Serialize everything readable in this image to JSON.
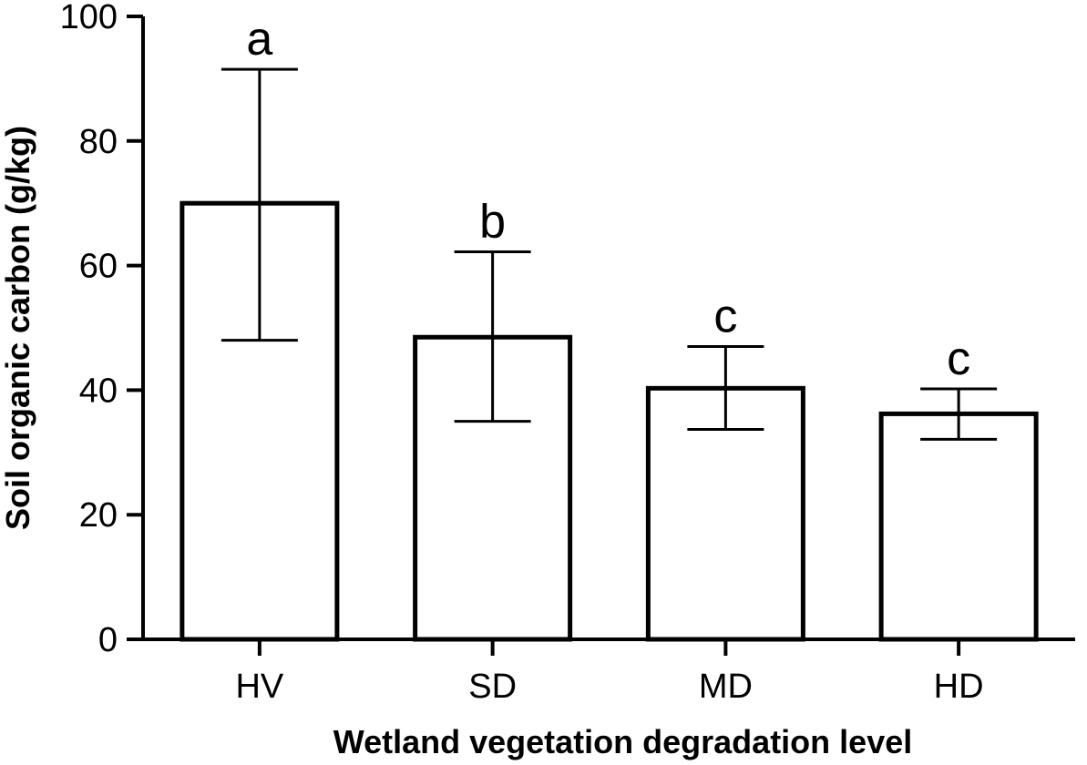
{
  "chart_data": {
    "type": "bar",
    "title": "",
    "xlabel": "Wetland vegetation degradation level",
    "ylabel": "Soil organic carbon (g/kg)",
    "categories": [
      "HV",
      "SD",
      "MD",
      "HD"
    ],
    "values": [
      70,
      48.5,
      40.3,
      36.2
    ],
    "error_upper": [
      91.5,
      62.2,
      47,
      40.2
    ],
    "error_lower": [
      48,
      35,
      33.7,
      32.1
    ],
    "significance_labels": [
      "a",
      "b",
      "c",
      "c"
    ],
    "ylim": [
      0,
      100
    ],
    "yticks": [
      "0",
      "20",
      "40",
      "60",
      "80",
      "100"
    ],
    "grid": false,
    "bar_fill": "#ffffff",
    "bar_stroke": "#000000"
  }
}
